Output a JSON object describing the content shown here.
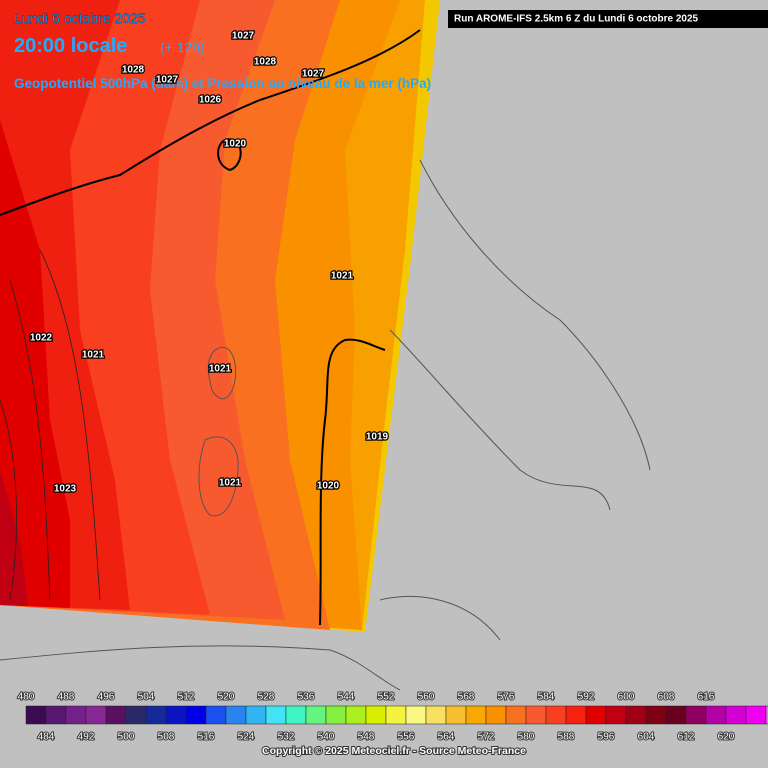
{
  "header": {
    "date": "Lundi 6 octobre 2025",
    "time": "20:00 locale",
    "lead": "(+ 12h)",
    "subtitle": "Geopotentiel 500hPa (dam) et Pression au niveau de la mer (hPa)",
    "run": "Run AROME-IFS 2.5km 6 Z du Lundi 6 octobre 2025"
  },
  "isobar_labels": [
    "1027",
    "1028",
    "1028",
    "1027",
    "1027",
    "1026",
    "1020",
    "1021",
    "1022",
    "1021",
    "1021",
    "1019",
    "1023",
    "1021",
    "1020"
  ],
  "legend": {
    "top_labels": [
      480,
      488,
      496,
      504,
      512,
      520,
      528,
      536,
      544,
      552,
      560,
      568,
      576,
      584,
      592,
      600,
      608,
      616
    ],
    "bottom_labels": [
      484,
      492,
      500,
      508,
      516,
      524,
      532,
      540,
      548,
      556,
      564,
      572,
      580,
      588,
      596,
      604,
      612,
      620
    ],
    "colors": [
      "#3c0a50",
      "#561870",
      "#74208a",
      "#862896",
      "#5a1060",
      "#2a2a6a",
      "#142a96",
      "#0a14c0",
      "#0000e6",
      "#1a50f0",
      "#2a84f0",
      "#30b4f4",
      "#40e4f4",
      "#40f4c4",
      "#64f482",
      "#86f040",
      "#acf020",
      "#d8f000",
      "#f4f440",
      "#f8f882",
      "#f8e060",
      "#f8c030",
      "#f8a800",
      "#f89000",
      "#f87020",
      "#f85a30",
      "#f84020",
      "#f82010",
      "#e00000",
      "#c00012",
      "#a00014",
      "#800014",
      "#6a0020",
      "#900060",
      "#b400a4",
      "#d400d4",
      "#f000f0",
      "#f070f0"
    ]
  },
  "credit": "Copyright © 2025 Meteociel.fr - Source Meteo-France"
}
